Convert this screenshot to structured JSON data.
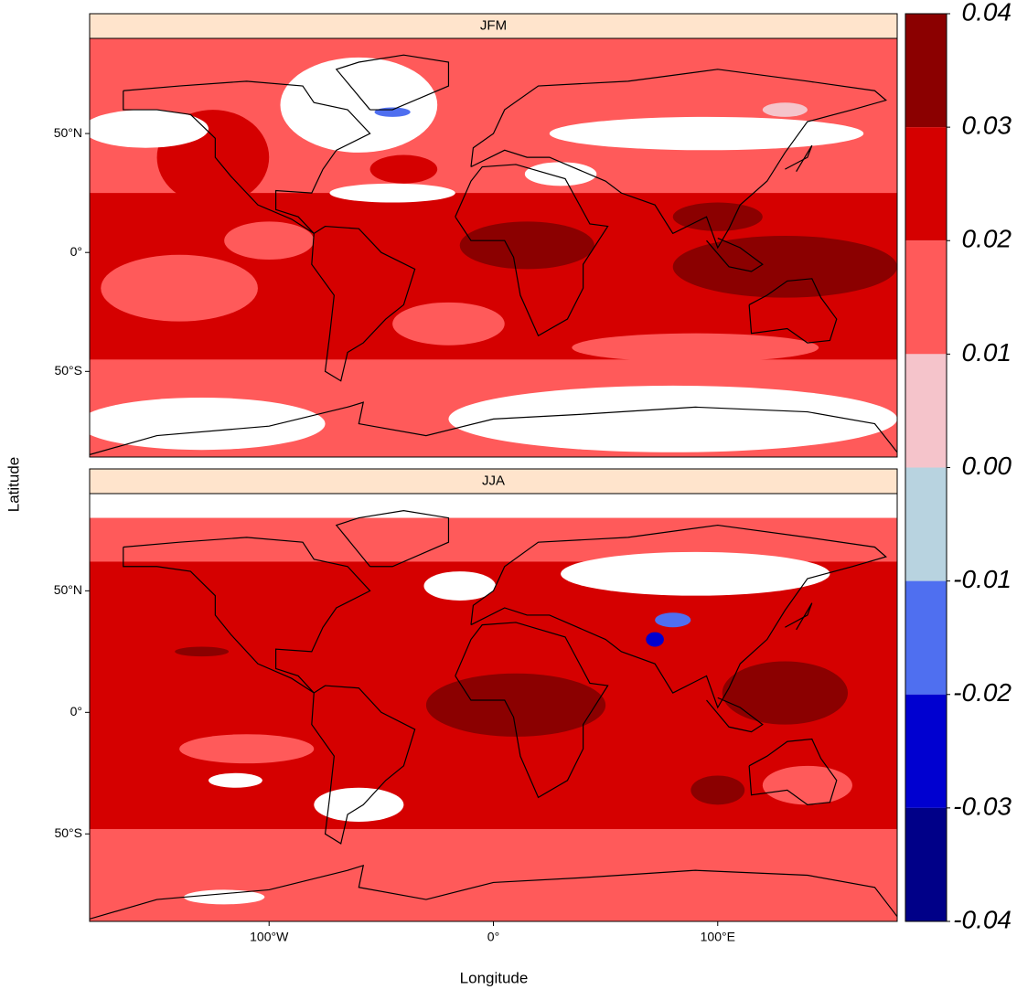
{
  "panels": [
    {
      "title": "JFM"
    },
    {
      "title": "JJA"
    }
  ],
  "x_axis": {
    "label": "Longitude",
    "lim": [
      -180,
      180
    ],
    "ticks": [
      {
        "value": -100,
        "label": "100°W"
      },
      {
        "value": 0,
        "label": "0°"
      },
      {
        "value": 100,
        "label": "100°E"
      }
    ]
  },
  "y_axis": {
    "label": "Latitude",
    "lim": [
      -86,
      90
    ],
    "ticks": [
      {
        "value": 50,
        "label": "50°N"
      },
      {
        "value": 0,
        "label": "0°"
      },
      {
        "value": -50,
        "label": "50°S"
      }
    ]
  },
  "colorbar": {
    "lim": [
      -0.04,
      0.04
    ],
    "ticks": [
      0.04,
      0.03,
      0.02,
      0.01,
      {
        "value": 0,
        "label": "0.00"
      },
      -0.01,
      -0.02,
      -0.03,
      -0.04
    ],
    "colors": [
      "#8b0000",
      "#d50000",
      "#ff5a5a",
      "#f5c4cb",
      "#b8d3e0",
      "#4f6ff0",
      "#0000d0",
      "#000088"
    ]
  }
}
